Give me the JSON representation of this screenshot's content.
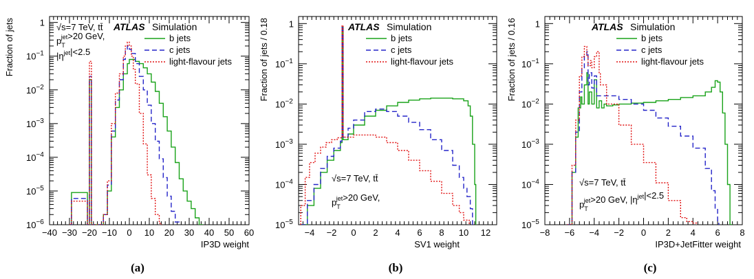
{
  "chart_data": [
    {
      "type": "line",
      "panel_label": "(a)",
      "xlabel": "IP3D weight",
      "ylabel": "Fraction of jets",
      "xlim": [
        -40,
        60
      ],
      "ylim": [
        1e-06,
        1.5
      ],
      "yscale": "log",
      "xticks": [
        -40,
        -30,
        -20,
        -10,
        0,
        10,
        20,
        30,
        40,
        50,
        60
      ],
      "yticks": [
        {
          "v": 1e-06,
          "t": "10"
        },
        {
          "v": 1e-05,
          "t": "10"
        },
        {
          "v": 0.0001,
          "t": "10"
        },
        {
          "v": 0.001,
          "t": "10"
        },
        {
          "v": 0.01,
          "t": "10"
        },
        {
          "v": 0.1,
          "t": "10"
        },
        {
          "v": 1,
          "t": "1"
        }
      ],
      "yexp": [
        "-6",
        "-5",
        "-4",
        "-3",
        "-2",
        "-1",
        ""
      ],
      "atlas": "ATLAS",
      "simulation": "Simulation",
      "energy": "√s=7 TeV, tt̄",
      "cut_pt": "p_T^jet>20 GeV,",
      "cut_eta": "|η^jet|<2.5",
      "legend": [
        "b jets",
        "c jets",
        "light-flavour jets"
      ],
      "legend_position": "top-right",
      "series": [
        {
          "name": "b jets",
          "color": "#18a218",
          "dash": "",
          "x": [
            -30,
            -29,
            -21,
            -20,
            -19,
            -15,
            -13,
            -11,
            -9,
            -7,
            -5,
            -3,
            -1,
            0,
            1,
            3,
            5,
            7,
            9,
            11,
            13,
            15,
            17,
            19,
            21,
            23,
            25,
            27,
            29,
            31,
            33,
            35,
            37
          ],
          "y": [
            1e-06,
            9e-06,
            1e-06,
            0.02,
            1e-06,
            1e-06,
            2e-06,
            1e-05,
            0.0004,
            0.003,
            0.01,
            0.03,
            0.06,
            0.08,
            0.08,
            0.07,
            0.06,
            0.045,
            0.03,
            0.017,
            0.009,
            0.004,
            0.0016,
            0.0006,
            0.0002,
            7e-05,
            2.3e-05,
            1e-05,
            5e-06,
            3e-06,
            1.6e-06,
            1e-06,
            1e-06
          ]
        },
        {
          "name": "c jets",
          "color": "#2323c8",
          "dash": "7,4",
          "x": [
            -30,
            -29,
            -21,
            -20,
            -19,
            -15,
            -13,
            -11,
            -9,
            -7,
            -5,
            -3,
            -2,
            -1,
            0,
            1,
            3,
            5,
            7,
            9,
            11,
            13,
            15,
            17,
            19,
            21,
            23,
            25
          ],
          "y": [
            1e-06,
            6e-06,
            1e-06,
            0.025,
            1e-06,
            1e-06,
            2e-06,
            1.5e-05,
            0.0006,
            0.005,
            0.02,
            0.08,
            0.15,
            0.2,
            0.16,
            0.12,
            0.06,
            0.025,
            0.01,
            0.0035,
            0.001,
            0.0003,
            9e-05,
            2.5e-05,
            7e-06,
            2.5e-06,
            1.2e-06,
            1e-06
          ]
        },
        {
          "name": "light-flavour jets",
          "color": "#e01010",
          "dash": "2,2",
          "x": [
            -30,
            -29,
            -21,
            -20,
            -19,
            -15,
            -13,
            -11,
            -9,
            -7,
            -5,
            -3,
            -2,
            -1,
            0,
            1,
            2,
            3,
            5,
            7,
            9,
            11,
            13,
            15,
            16
          ],
          "y": [
            1e-06,
            5e-06,
            1e-06,
            0.07,
            1e-06,
            1e-06,
            2e-06,
            2e-05,
            0.001,
            0.008,
            0.03,
            0.1,
            0.2,
            0.26,
            0.2,
            0.1,
            0.04,
            0.015,
            0.002,
            0.00025,
            3e-05,
            6e-06,
            2e-06,
            1.1e-06,
            1e-06
          ]
        }
      ]
    },
    {
      "type": "line",
      "panel_label": "(b)",
      "xlabel": "SV1 weight",
      "ylabel": "Fraction of jets / 0.18",
      "xlim": [
        -5,
        13
      ],
      "ylim": [
        1e-05,
        1.5
      ],
      "yscale": "log",
      "xticks": [
        -4,
        -2,
        0,
        2,
        4,
        6,
        8,
        10,
        12
      ],
      "yticks": [
        {
          "v": 1e-05,
          "t": "10"
        },
        {
          "v": 0.0001,
          "t": "10"
        },
        {
          "v": 0.001,
          "t": "10"
        },
        {
          "v": 0.01,
          "t": "10"
        },
        {
          "v": 0.1,
          "t": "10"
        },
        {
          "v": 1,
          "t": "1"
        }
      ],
      "yexp": [
        "-5",
        "-4",
        "-3",
        "-2",
        "-1",
        ""
      ],
      "atlas": "ATLAS",
      "simulation": "Simulation",
      "energy": "√s=7 TeV, tt̄",
      "cut_pt": "p_T^jet>20 GeV,",
      "cut_eta": "|η^jet|<2.5",
      "legend": [
        "b jets",
        "c jets",
        "light-flavour jets"
      ],
      "legend_position": "top-right",
      "series": [
        {
          "name": "b jets",
          "color": "#18a218",
          "dash": "",
          "x": [
            -4.8,
            -4.2,
            -3.6,
            -3,
            -2.4,
            -1.8,
            -1.2,
            -1.05,
            -0.95,
            -0.5,
            0,
            1,
            2,
            3,
            4,
            5,
            6,
            7,
            8,
            9,
            10,
            10.4,
            10.6,
            10.8,
            11,
            11.1
          ],
          "y": [
            1e-05,
            3e-05,
            8e-05,
            0.0002,
            0.0004,
            0.0007,
            0.0011,
            0.8,
            0.0013,
            0.0018,
            0.003,
            0.005,
            0.007,
            0.009,
            0.011,
            0.0125,
            0.0135,
            0.014,
            0.014,
            0.0135,
            0.012,
            0.009,
            0.005,
            0.001,
            0.0001,
            1e-05
          ]
        },
        {
          "name": "c jets",
          "color": "#2323c8",
          "dash": "7,4",
          "x": [
            -4.8,
            -4.2,
            -3.6,
            -3,
            -2.4,
            -1.8,
            -1.2,
            -1.05,
            -0.95,
            -0.5,
            0,
            1,
            2,
            3,
            4,
            5,
            6,
            7,
            8,
            9,
            9.6,
            10,
            10.3,
            10.6,
            10.8
          ],
          "y": [
            1e-05,
            4e-05,
            0.0001,
            0.00025,
            0.0005,
            0.0008,
            0.0012,
            0.85,
            0.0015,
            0.0025,
            0.004,
            0.0065,
            0.0075,
            0.0065,
            0.005,
            0.0035,
            0.0023,
            0.0013,
            0.0007,
            0.0003,
            0.00015,
            8e-05,
            5e-05,
            2.5e-05,
            1e-05
          ]
        },
        {
          "name": "light-flavour jets",
          "color": "#e01010",
          "dash": "2,2",
          "x": [
            -4.8,
            -4.4,
            -4,
            -3.5,
            -3,
            -2.5,
            -2,
            -1.5,
            -1.05,
            -0.95,
            0,
            1,
            2,
            3,
            4,
            5,
            6,
            7,
            8,
            9,
            9.6,
            10,
            10.5
          ],
          "y": [
            3e-05,
            0.00015,
            0.00035,
            0.0006,
            0.00085,
            0.0011,
            0.0013,
            0.00145,
            0.9,
            0.0015,
            0.0017,
            0.0017,
            0.0015,
            0.0011,
            0.0007,
            0.0004,
            0.00022,
            0.00012,
            6e-05,
            3e-05,
            2e-05,
            1.3e-05,
            1e-05
          ]
        }
      ]
    },
    {
      "type": "line",
      "panel_label": "(c)",
      "xlabel": "IP3D+JetFitter weight",
      "ylabel": "Fraction of jets / 0.16",
      "xlim": [
        -8,
        8
      ],
      "ylim": [
        1e-05,
        1.5
      ],
      "yscale": "log",
      "xticks": [
        -8,
        -6,
        -4,
        -2,
        0,
        2,
        4,
        6,
        8
      ],
      "yticks": [
        {
          "v": 1e-05,
          "t": "10"
        },
        {
          "v": 0.0001,
          "t": "10"
        },
        {
          "v": 0.001,
          "t": "10"
        },
        {
          "v": 0.01,
          "t": "10"
        },
        {
          "v": 0.1,
          "t": "10"
        },
        {
          "v": 1,
          "t": "1"
        }
      ],
      "yexp": [
        "-5",
        "-4",
        "-3",
        "-2",
        "-1",
        ""
      ],
      "atlas": "ATLAS",
      "simulation": "Simulation",
      "energy": "√s=7 TeV, tt̄",
      "cut_pt": "p_T^jet>20 GeV, |η^jet|<2.5",
      "legend": [
        "b jets",
        "c jets",
        "light-flavour jets"
      ],
      "legend_position": "top-right",
      "series": [
        {
          "name": "b jets",
          "color": "#18a218",
          "dash": "",
          "x": [
            -6.1,
            -5.8,
            -5.5,
            -5.3,
            -5.1,
            -5,
            -4.8,
            -4.6,
            -4.5,
            -4.4,
            -4.2,
            -4,
            -3.8,
            -3.6,
            -3.4,
            -3.2,
            -3,
            -2.5,
            -2,
            -1,
            0,
            1,
            2,
            3,
            4,
            5,
            5.5,
            5.8,
            6,
            6.2,
            6.4,
            6.6,
            6.8,
            7,
            7.2
          ],
          "y": [
            1e-05,
            0.0002,
            0.0015,
            0.008,
            0.015,
            0.01,
            0.03,
            0.06,
            0.01,
            0.02,
            0.01,
            0.04,
            0.008,
            0.012,
            0.008,
            0.01,
            0.009,
            0.0095,
            0.01,
            0.0105,
            0.011,
            0.012,
            0.013,
            0.0145,
            0.016,
            0.02,
            0.026,
            0.038,
            0.035,
            0.02,
            0.006,
            0.001,
            0.0001,
            1e-05,
            1e-05
          ]
        },
        {
          "name": "c jets",
          "color": "#2323c8",
          "dash": "7,4",
          "x": [
            -6.2,
            -5.8,
            -5.5,
            -5.2,
            -5,
            -4.8,
            -4.6,
            -4.5,
            -4.4,
            -4.2,
            -4,
            -3.8,
            -3.5,
            -3,
            -2,
            -1,
            0,
            1,
            2,
            3,
            4,
            5,
            5.5,
            5.8,
            6,
            6.1
          ],
          "y": [
            1e-05,
            0.0002,
            0.002,
            0.02,
            0.08,
            0.16,
            0.2,
            0.03,
            0.06,
            0.025,
            0.05,
            0.016,
            0.016,
            0.016,
            0.013,
            0.01,
            0.007,
            0.0045,
            0.0028,
            0.0016,
            0.0008,
            0.00025,
            7e-05,
            2.5e-05,
            1.2e-05,
            1e-05
          ]
        },
        {
          "name": "light-flavour jets",
          "color": "#e01010",
          "dash": "2,2",
          "x": [
            -6.2,
            -5.8,
            -5.5,
            -5.2,
            -5,
            -4.8,
            -4.6,
            -4.5,
            -4.3,
            -4.2,
            -4,
            -3.8,
            -3.6,
            -3.5,
            -3,
            -2,
            -1,
            0,
            1,
            2,
            3,
            3.5,
            4,
            4.3
          ],
          "y": [
            1e-05,
            0.0003,
            0.004,
            0.05,
            0.15,
            0.27,
            0.15,
            0.09,
            0.12,
            0.08,
            0.15,
            0.2,
            0.06,
            0.03,
            0.01,
            0.003,
            0.001,
            0.00035,
            0.00011,
            4e-05,
            1.5e-05,
            1.2e-05,
            1.1e-05,
            1e-05
          ]
        }
      ]
    }
  ]
}
